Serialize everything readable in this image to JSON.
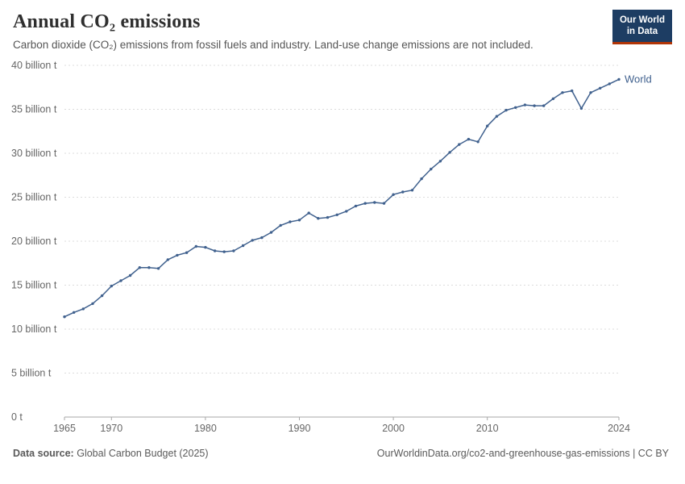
{
  "header": {
    "title": "Annual CO₂ emissions",
    "subtitle": "Carbon dioxide (CO₂) emissions from fossil fuels and industry. Land-use change emissions are not included.",
    "logo": {
      "line1": "Our World",
      "line2": "in Data"
    }
  },
  "chart_data": {
    "type": "line",
    "title": "Annual CO₂ emissions",
    "xlabel": "",
    "ylabel": "",
    "xlim": [
      1965,
      2024
    ],
    "ylim": [
      0,
      40
    ],
    "grid": "horizontal-dashed",
    "legend_position": "end-of-line-label",
    "x_ticks": [
      1965,
      1970,
      1980,
      1990,
      2000,
      2010,
      2024
    ],
    "y_ticks": [
      0,
      5,
      10,
      15,
      20,
      25,
      30,
      35,
      40
    ],
    "y_tick_labels": [
      "0 t",
      "5 billion t",
      "10 billion t",
      "15 billion t",
      "20 billion t",
      "25 billion t",
      "30 billion t",
      "35 billion t",
      "40 billion t"
    ],
    "end_label": "World",
    "series": [
      {
        "name": "World",
        "color": "#40618e",
        "x": [
          1965,
          1966,
          1967,
          1968,
          1969,
          1970,
          1971,
          1972,
          1973,
          1974,
          1975,
          1976,
          1977,
          1978,
          1979,
          1980,
          1981,
          1982,
          1983,
          1984,
          1985,
          1986,
          1987,
          1988,
          1989,
          1990,
          1991,
          1992,
          1993,
          1994,
          1995,
          1996,
          1997,
          1998,
          1999,
          2000,
          2001,
          2002,
          2003,
          2004,
          2005,
          2006,
          2007,
          2008,
          2009,
          2010,
          2011,
          2012,
          2013,
          2014,
          2015,
          2016,
          2017,
          2018,
          2019,
          2020,
          2021,
          2022,
          2023,
          2024
        ],
        "values": [
          11.4,
          11.9,
          12.3,
          12.9,
          13.8,
          14.9,
          15.5,
          16.1,
          17.0,
          17.0,
          16.9,
          17.9,
          18.4,
          18.7,
          19.4,
          19.3,
          18.9,
          18.8,
          18.9,
          19.5,
          20.1,
          20.4,
          21.0,
          21.8,
          22.2,
          22.4,
          23.2,
          22.6,
          22.7,
          23.0,
          23.4,
          24.0,
          24.3,
          24.4,
          24.3,
          25.3,
          25.6,
          25.8,
          27.1,
          28.2,
          29.1,
          30.1,
          31.0,
          31.6,
          31.3,
          33.1,
          34.2,
          34.9,
          35.2,
          35.5,
          35.4,
          35.4,
          36.2,
          36.9,
          37.1,
          35.1,
          36.9,
          37.4,
          37.9,
          38.4
        ]
      }
    ],
    "units": "billion t"
  },
  "footer": {
    "source_label": "Data source:",
    "source_text": "Global Carbon Budget (2025)",
    "link_text": "OurWorldinData.org/co2-and-greenhouse-gas-emissions | CC BY"
  },
  "colors": {
    "line": "#40618e",
    "logo_bg": "#1d3d63",
    "logo_accent": "#b13507",
    "grid": "#dcdcdc",
    "axis": "#a7a7a7",
    "tick_text": "#666666",
    "title_text": "#2f2f2f",
    "subtitle_text": "#555555",
    "footer_text": "#5a5a5a"
  }
}
